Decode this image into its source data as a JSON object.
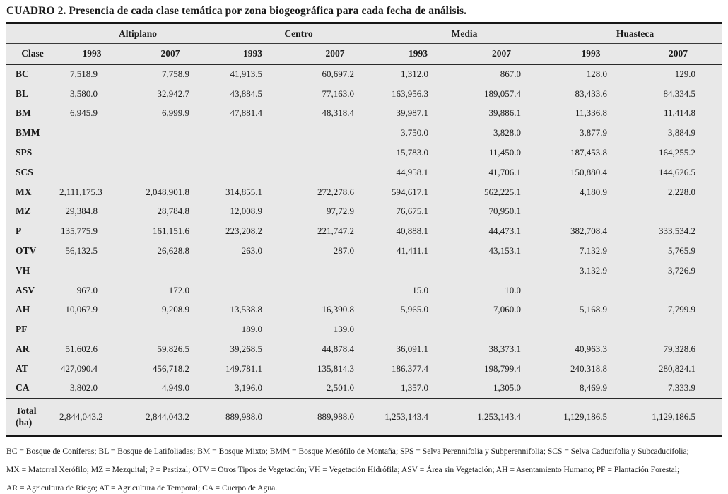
{
  "title": "CUADRO 2. Presencia de cada clase temática por zona biogeográfica para cada fecha de análisis.",
  "table": {
    "clase_header": "Clase",
    "groups": [
      {
        "label": "Altiplano"
      },
      {
        "label": "Centro"
      },
      {
        "label": "Media"
      },
      {
        "label": "Huasteca"
      }
    ],
    "year_headers": [
      "1993",
      "2007",
      "1993",
      "2007",
      "1993",
      "2007",
      "1993",
      "2007"
    ],
    "rows": [
      {
        "clase": "BC",
        "values": [
          "7,518.9",
          "7,758.9",
          "41,913.5",
          "60,697.2",
          "1,312.0",
          "867.0",
          "128.0",
          "129.0"
        ]
      },
      {
        "clase": "BL",
        "values": [
          "3,580.0",
          "32,942.7",
          "43,884.5",
          "77,163.0",
          "163,956.3",
          "189,057.4",
          "83,433.6",
          "84,334.5"
        ]
      },
      {
        "clase": "BM",
        "values": [
          "6,945.9",
          "6,999.9",
          "47,881.4",
          "48,318.4",
          "39,987.1",
          "39,886.1",
          "11,336.8",
          "11,414.8"
        ]
      },
      {
        "clase": "BMM",
        "values": [
          "",
          "",
          "",
          "",
          "3,750.0",
          "3,828.0",
          "3,877.9",
          "3,884.9"
        ]
      },
      {
        "clase": "SPS",
        "values": [
          "",
          "",
          "",
          "",
          "15,783.0",
          "11,450.0",
          "187,453.8",
          "164,255.2"
        ]
      },
      {
        "clase": "SCS",
        "values": [
          "",
          "",
          "",
          "",
          "44,958.1",
          "41,706.1",
          "150,880.4",
          "144,626.5"
        ]
      },
      {
        "clase": "MX",
        "values": [
          "2,111,175.3",
          "2,048,901.8",
          "314,855.1",
          "272,278.6",
          "594,617.1",
          "562,225.1",
          "4,180.9",
          "2,228.0"
        ]
      },
      {
        "clase": "MZ",
        "values": [
          "29,384.8",
          "28,784.8",
          "12,008.9",
          "97,72.9",
          "76,675.1",
          "70,950.1",
          "",
          ""
        ]
      },
      {
        "clase": "P",
        "values": [
          "135,775.9",
          "161,151.6",
          "223,208.2",
          "221,747.2",
          "40,888.1",
          "44,473.1",
          "382,708.4",
          "333,534.2"
        ]
      },
      {
        "clase": "OTV",
        "values": [
          "56,132.5",
          "26,628.8",
          "263.0",
          "287.0",
          "41,411.1",
          "43,153.1",
          "7,132.9",
          "5,765.9"
        ]
      },
      {
        "clase": "VH",
        "values": [
          "",
          "",
          "",
          "",
          "",
          "",
          "3,132.9",
          "3,726.9"
        ]
      },
      {
        "clase": "ASV",
        "values": [
          "967.0",
          "172.0",
          "",
          "",
          "15.0",
          "10.0",
          "",
          ""
        ]
      },
      {
        "clase": "AH",
        "values": [
          "10,067.9",
          "9,208.9",
          "13,538.8",
          "16,390.8",
          "5,965.0",
          "7,060.0",
          "5,168.9",
          "7,799.9"
        ]
      },
      {
        "clase": "PF",
        "values": [
          "",
          "",
          "189.0",
          "139.0",
          "",
          "",
          "",
          ""
        ]
      },
      {
        "clase": "AR",
        "values": [
          "51,602.6",
          "59,826.5",
          "39,268.5",
          "44,878.4",
          "36,091.1",
          "38,373.1",
          "40,963.3",
          "79,328.6"
        ]
      },
      {
        "clase": "AT",
        "values": [
          "427,090.4",
          "456,718.2",
          "149,781.1",
          "135,814.3",
          "186,377.4",
          "198,799.4",
          "240,318.8",
          "280,824.1"
        ]
      },
      {
        "clase": "CA",
        "values": [
          "3,802.0",
          "4,949.0",
          "3,196.0",
          "2,501.0",
          "1,357.0",
          "1,305.0",
          "8,469.9",
          "7,333.9"
        ]
      }
    ],
    "total": {
      "label": "Total",
      "unit": "(ha)",
      "values": [
        "2,844,043.2",
        "2,844,043.2",
        "889,988.0",
        "889,988.0",
        "1,253,143.4",
        "1,253,143.4",
        "1,129,186.5",
        "1,129,186.5"
      ]
    }
  },
  "footnotes": [
    "BC = Bosque de Coníferas; BL = Bosque de Latifoliadas; BM = Bosque Mixto; BMM = Bosque Mesófilo de Montaña; SPS = Selva Perennifolia y Subperennifolia; SCS = Selva Caducifolia y Subcaducifolia;",
    "MX = Matorral Xerófilo; MZ = Mezquital; P = Pastizal; OTV = Otros Tipos de Vegetación; VH = Vegetación Hidrófila; ASV = Área sin Vegetación; AH = Asentamiento Humano; PF = Plantación Forestal;",
    "AR = Agricultura de Riego; AT = Agricultura de Temporal; CA = Cuerpo de Agua."
  ],
  "colors": {
    "table_background": "#e8e8e8",
    "rule": "#161616",
    "text": "#1a1a1a"
  }
}
